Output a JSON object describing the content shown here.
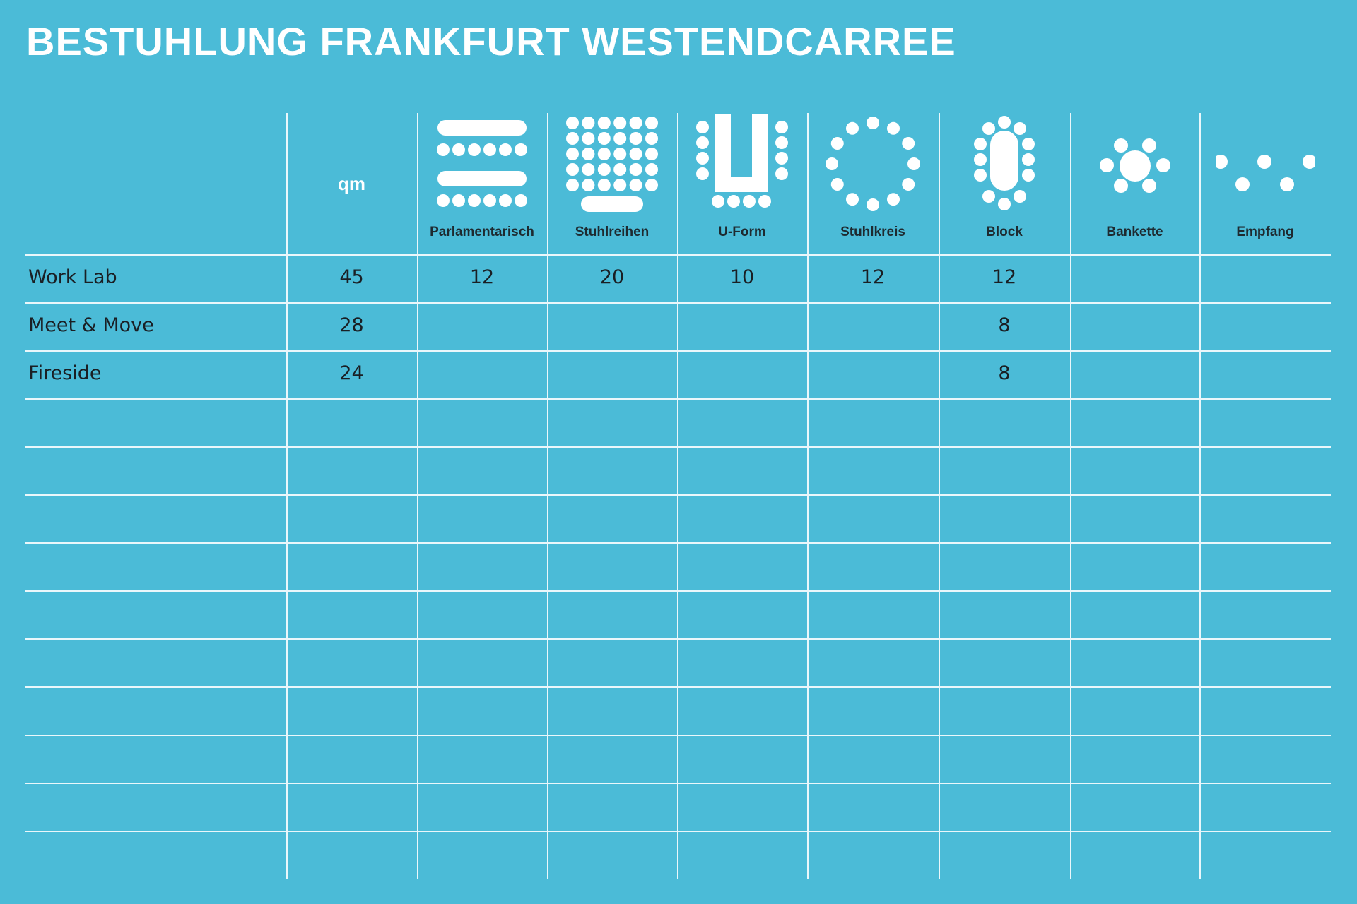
{
  "title": "BESTUHLUNG FRANKFURT WESTENDCARREE",
  "header": {
    "qm_label": "qm",
    "columns": [
      {
        "label": "Parlamentarisch",
        "icon": "parliamentary-seating-icon"
      },
      {
        "label": "Stuhlreihen",
        "icon": "chair-rows-icon"
      },
      {
        "label": "U-Form",
        "icon": "u-shape-icon"
      },
      {
        "label": "Stuhlkreis",
        "icon": "chair-circle-icon"
      },
      {
        "label": "Block",
        "icon": "block-table-icon"
      },
      {
        "label": "Bankette",
        "icon": "banquet-icon"
      },
      {
        "label": "Empfang",
        "icon": "reception-icon"
      }
    ]
  },
  "rows": [
    {
      "name": "Work Lab",
      "qm": "45",
      "cells": [
        "12",
        "20",
        "10",
        "12",
        "12",
        "",
        ""
      ]
    },
    {
      "name": "Meet & Move",
      "qm": "28",
      "cells": [
        "",
        "",
        "",
        "",
        "8",
        "",
        ""
      ]
    },
    {
      "name": "Fireside",
      "qm": "24",
      "cells": [
        "",
        "",
        "",
        "",
        "8",
        "",
        ""
      ]
    }
  ],
  "colors": {
    "background": "#4bbbd7",
    "grid": "#eaf7fb",
    "text": "#1a1f24",
    "icon": "#ffffff"
  }
}
